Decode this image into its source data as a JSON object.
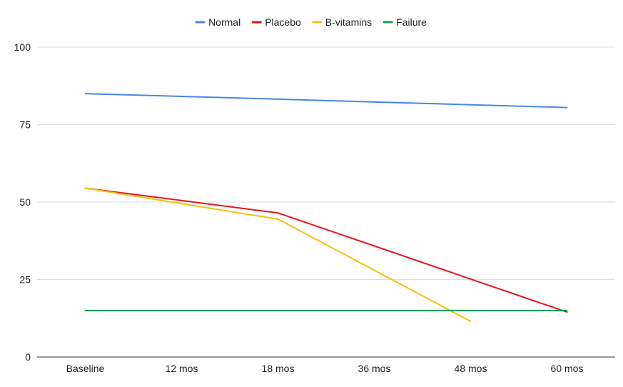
{
  "chart_data": {
    "type": "line",
    "title": "",
    "xlabel": "",
    "ylabel": "",
    "categories": [
      "Baseline",
      "12 mos",
      "18 mos",
      "36 mos",
      "48 mos",
      "60 mos"
    ],
    "ylim": [
      0,
      100
    ],
    "yticks": [
      0,
      25,
      50,
      75,
      100
    ],
    "grid": true,
    "legend_position": "top",
    "series": [
      {
        "name": "Normal",
        "color": "#4a86e8",
        "values": [
          85,
          null,
          null,
          null,
          null,
          80.5
        ]
      },
      {
        "name": "Placebo",
        "color": "#e8151c",
        "values": [
          54.5,
          null,
          46.5,
          null,
          null,
          14.5
        ]
      },
      {
        "name": "B-vitamins",
        "color": "#f4c20d",
        "values": [
          54.5,
          null,
          44.5,
          null,
          11.5,
          null
        ]
      },
      {
        "name": "Failure",
        "color": "#0f9d58",
        "values": [
          15,
          null,
          null,
          null,
          null,
          15
        ]
      }
    ]
  }
}
